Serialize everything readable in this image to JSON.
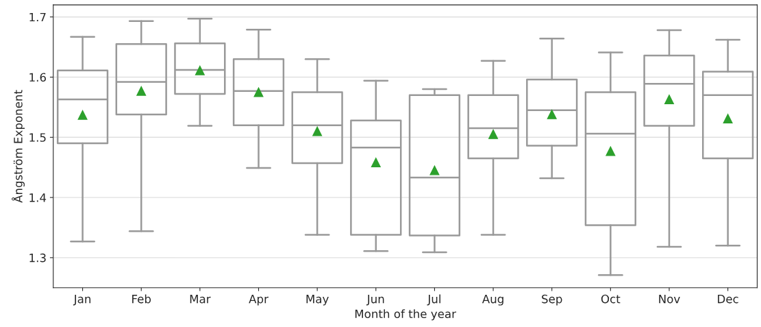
{
  "chart_data": {
    "type": "box",
    "xlabel": "Month of the year",
    "ylabel": "Ångström Exponent",
    "categories": [
      "Jan",
      "Feb",
      "Mar",
      "Apr",
      "May",
      "Jun",
      "Jul",
      "Aug",
      "Sep",
      "Oct",
      "Nov",
      "Dec"
    ],
    "color": "#999999",
    "boxes": [
      {
        "low": 1.327,
        "q1": 1.49,
        "median": 1.563,
        "q3": 1.611,
        "high": 1.667,
        "mean": 1.537
      },
      {
        "low": 1.344,
        "q1": 1.538,
        "median": 1.592,
        "q3": 1.655,
        "high": 1.693,
        "mean": 1.577
      },
      {
        "low": 1.519,
        "q1": 1.572,
        "median": 1.612,
        "q3": 1.656,
        "high": 1.697,
        "mean": 1.611
      },
      {
        "low": 1.449,
        "q1": 1.52,
        "median": 1.577,
        "q3": 1.63,
        "high": 1.679,
        "mean": 1.575
      },
      {
        "low": 1.338,
        "q1": 1.457,
        "median": 1.52,
        "q3": 1.575,
        "high": 1.63,
        "mean": 1.51
      },
      {
        "low": 1.311,
        "q1": 1.338,
        "median": 1.483,
        "q3": 1.528,
        "high": 1.594,
        "mean": 1.458
      },
      {
        "low": 1.309,
        "q1": 1.337,
        "median": 1.433,
        "q3": 1.57,
        "high": 1.58,
        "mean": 1.445
      },
      {
        "low": 1.338,
        "q1": 1.465,
        "median": 1.515,
        "q3": 1.57,
        "high": 1.627,
        "mean": 1.505
      },
      {
        "low": 1.432,
        "q1": 1.486,
        "median": 1.545,
        "q3": 1.596,
        "high": 1.664,
        "mean": 1.538
      },
      {
        "low": 1.271,
        "q1": 1.354,
        "median": 1.506,
        "q3": 1.575,
        "high": 1.641,
        "mean": 1.477
      },
      {
        "low": 1.318,
        "q1": 1.519,
        "median": 1.589,
        "q3": 1.636,
        "high": 1.678,
        "mean": 1.563
      },
      {
        "low": 1.32,
        "q1": 1.465,
        "median": 1.57,
        "q3": 1.609,
        "high": 1.662,
        "mean": 1.531
      }
    ],
    "ylim": [
      1.25,
      1.72
    ],
    "yticks": [
      {
        "value": 1.3,
        "label": "1.3"
      },
      {
        "value": 1.4,
        "label": "1.4"
      },
      {
        "value": 1.5,
        "label": "1.5"
      },
      {
        "value": 1.6,
        "label": "1.6"
      },
      {
        "value": 1.7,
        "label": "1.7"
      }
    ],
    "grid": "y"
  }
}
